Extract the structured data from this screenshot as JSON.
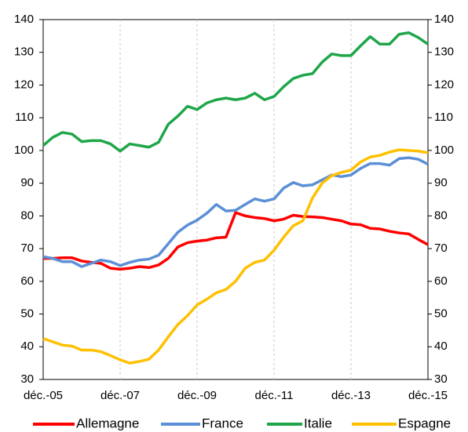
{
  "chart_data": {
    "type": "line",
    "categories": [
      "déc.-05",
      null,
      null,
      null,
      null,
      null,
      null,
      null,
      "déc.-07",
      null,
      null,
      null,
      null,
      null,
      null,
      null,
      "déc.-09",
      null,
      null,
      null,
      null,
      null,
      null,
      null,
      "déc.-11",
      null,
      null,
      null,
      null,
      null,
      null,
      null,
      "déc.-13",
      null,
      null,
      null,
      null,
      null,
      null,
      null,
      "déc.-15"
    ],
    "series": [
      {
        "name": "Allemagne",
        "color": "#ff0000",
        "values": [
          67,
          67,
          67.2,
          67.2,
          66.2,
          65.8,
          65.5,
          64,
          63.7,
          64,
          64.5,
          64.2,
          65,
          67,
          70.5,
          71.8,
          72.3,
          72.6,
          73.3,
          73.5,
          81,
          80,
          79.5,
          79.2,
          78.5,
          79,
          80.2,
          79.8,
          79.7,
          79.5,
          79,
          78.5,
          77.5,
          77.3,
          76.2,
          76,
          75.3,
          74.8,
          74.5,
          72.8,
          71.2
        ]
      },
      {
        "name": "France",
        "color": "#5b8fd6",
        "values": [
          67.5,
          67,
          66,
          66,
          64.5,
          65.5,
          66.5,
          66,
          64.8,
          65.8,
          66.5,
          66.8,
          68,
          71.5,
          75,
          77.2,
          78.7,
          80.8,
          83.5,
          81.5,
          81.7,
          83.5,
          85.2,
          84.5,
          85.2,
          88.5,
          90.2,
          89.2,
          89.5,
          91,
          92.5,
          92,
          92.5,
          94.5,
          96,
          96,
          95.5,
          97.5,
          97.8,
          97.3,
          95.8
        ]
      },
      {
        "name": "Italie",
        "color": "#1fa64a",
        "values": [
          101.5,
          104,
          105.5,
          105,
          102.7,
          103,
          103,
          102,
          99.8,
          102,
          101.5,
          101,
          102.5,
          108,
          110.5,
          113.5,
          112.5,
          114.5,
          115.5,
          116,
          115.5,
          116,
          117.5,
          115.5,
          116.5,
          119.5,
          122,
          123,
          123.5,
          127,
          129.5,
          129,
          129,
          132,
          134.8,
          132.5,
          132.5,
          135.5,
          136,
          134.5,
          132.5
        ]
      },
      {
        "name": "Espagne",
        "color": "#ffc000",
        "values": [
          42.5,
          41.5,
          40.5,
          40.2,
          39,
          39,
          38.5,
          37.3,
          36,
          35,
          35.5,
          36.2,
          39,
          43,
          46.8,
          49.5,
          52.8,
          54.5,
          56.5,
          57.5,
          60,
          64,
          65.8,
          66.5,
          69.5,
          73.5,
          77,
          78.5,
          85.5,
          90,
          92.3,
          93.3,
          94,
          96.5,
          98,
          98.5,
          99.5,
          100.2,
          100,
          99.8,
          99.3
        ]
      }
    ],
    "ylim": [
      30,
      140
    ],
    "yticks": [
      30,
      40,
      50,
      60,
      70,
      80,
      90,
      100,
      110,
      120,
      130,
      140
    ],
    "y2lim": [
      30,
      140
    ],
    "y2ticks": [
      30,
      40,
      50,
      60,
      70,
      80,
      90,
      100,
      110,
      120,
      130,
      140
    ],
    "grid": true,
    "legend": "bottom"
  }
}
